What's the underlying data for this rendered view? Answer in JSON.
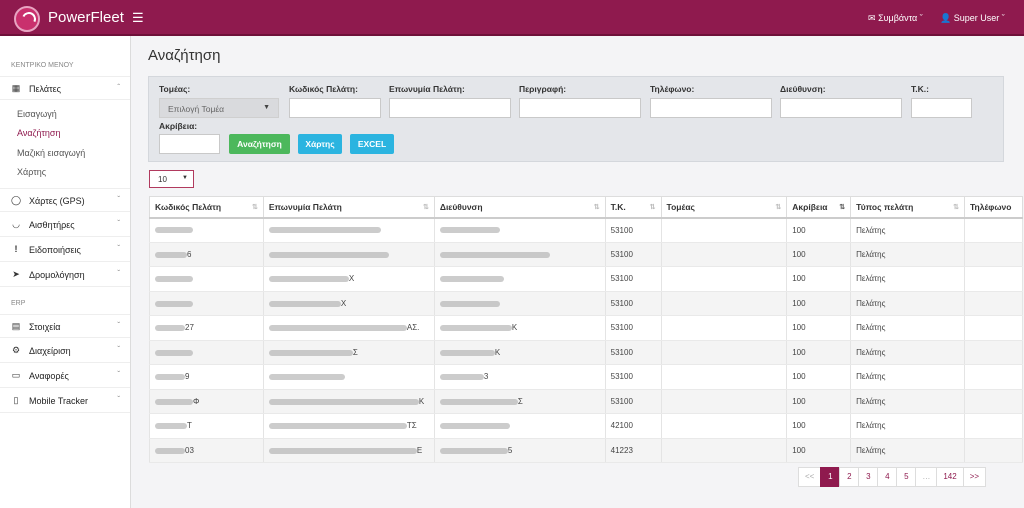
{
  "topbar": {
    "brand": "PowerFleet",
    "menu_icon": "hamburger-icon",
    "events_label": "Συμβάντα",
    "user_label": "Super User"
  },
  "sidebar": {
    "section_main": "ΚΕΝΤΡΙΚΟ ΜΕΝΟΥ",
    "section_erp": "ERP",
    "customers": {
      "label": "Πελάτες",
      "icon": "map-icon",
      "sub": [
        "Εισαγωγή",
        "Αναζήτηση",
        "Μαζική εισαγωγή",
        "Χάρτης"
      ]
    },
    "items": [
      {
        "label": "Χάρτες (GPS)",
        "icon": "globe-icon"
      },
      {
        "label": "Αισθητήρες",
        "icon": "gauge-icon"
      },
      {
        "label": "Ειδοποιήσεις",
        "icon": "exclamation-icon"
      },
      {
        "label": "Δρομολόγηση",
        "icon": "location-arrow-icon"
      }
    ],
    "erp_items": [
      {
        "label": "Στοιχεία",
        "icon": "truck-icon"
      },
      {
        "label": "Διαχείριση",
        "icon": "gear-icon"
      },
      {
        "label": "Αναφορές",
        "icon": "monitor-icon"
      },
      {
        "label": "Mobile Tracker",
        "icon": "mobile-icon"
      }
    ]
  },
  "page": {
    "title": "Αναζήτηση"
  },
  "filters": {
    "sector_label": "Τομέας:",
    "sector_value": "Επιλογή Τομέα",
    "code_label": "Κωδικός Πελάτη:",
    "name_label": "Επωνυμία Πελάτη:",
    "desc_label": "Περιγραφή:",
    "phone_label": "Τηλέφωνο:",
    "address_label": "Διεύθυνση:",
    "zip_label": "Τ.Κ.:",
    "accuracy_label": "Ακρίβεια:",
    "search_button": "Αναζήτηση",
    "map_button": "Χάρτης",
    "excel_button": "EXCEL"
  },
  "page_size": "10",
  "table": {
    "headers": [
      "Κωδικός Πελάτη",
      "Επωνυμία Πελάτη",
      "Διεύθυνση",
      "Τ.Κ.",
      "Τομέας",
      "Ακρίβεια",
      "Τύπος πελάτη",
      "Τηλέφωνο"
    ],
    "rows": [
      {
        "code": "",
        "name": "",
        "address": "",
        "zip": "53100",
        "sector": "",
        "accuracy": "100",
        "type": "Πελάτης"
      },
      {
        "code": "6",
        "name": "",
        "address": "",
        "zip": "53100",
        "sector": "",
        "accuracy": "100",
        "type": "Πελάτης"
      },
      {
        "code": "",
        "name": "Χ",
        "address": "",
        "zip": "53100",
        "sector": "",
        "accuracy": "100",
        "type": "Πελάτης"
      },
      {
        "code": "",
        "name": "Χ",
        "address": "",
        "zip": "53100",
        "sector": "",
        "accuracy": "100",
        "type": "Πελάτης"
      },
      {
        "code": "27",
        "name": "ΑΣ.",
        "address": "Κ",
        "zip": "53100",
        "sector": "",
        "accuracy": "100",
        "type": "Πελάτης"
      },
      {
        "code": "",
        "name": "Σ",
        "address": "Κ",
        "zip": "53100",
        "sector": "",
        "accuracy": "100",
        "type": "Πελάτης"
      },
      {
        "code": "9",
        "name": "",
        "address": "3",
        "zip": "53100",
        "sector": "",
        "accuracy": "100",
        "type": "Πελάτης"
      },
      {
        "code": "Φ",
        "name": "Κ",
        "address": "Σ",
        "zip": "53100",
        "sector": "",
        "accuracy": "100",
        "type": "Πελάτης"
      },
      {
        "code": "Τ",
        "name": "ΤΣ",
        "address": "",
        "zip": "42100",
        "sector": "",
        "accuracy": "100",
        "type": "Πελάτης"
      },
      {
        "code": "03",
        "name": "Ε",
        "address": "5",
        "zip": "41223",
        "sector": "",
        "accuracy": "100",
        "type": "Πελάτης"
      }
    ]
  },
  "pagination": {
    "prev": "<<",
    "pages": [
      "1",
      "2",
      "3",
      "4",
      "5",
      "…",
      "142"
    ],
    "next": ">>",
    "current": "1"
  }
}
